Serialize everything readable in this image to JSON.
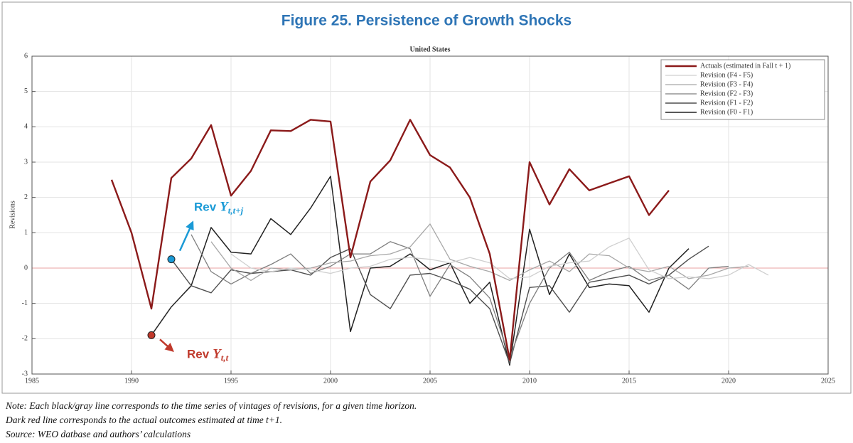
{
  "chart_data": {
    "type": "line",
    "title": "Figure 25. Persistence of Growth Shocks",
    "subtitle": "United States",
    "y_label": "Revisions",
    "x": [
      1989,
      1990,
      1991,
      1992,
      1993,
      1994,
      1995,
      1996,
      1997,
      1998,
      1999,
      2000,
      2001,
      2002,
      2003,
      2004,
      2005,
      2006,
      2007,
      2008,
      2009,
      2010,
      2011,
      2012,
      2013,
      2014,
      2015,
      2016,
      2017,
      2018,
      2019,
      2020,
      2021,
      2022
    ],
    "series": [
      {
        "name": "Actuals (estimated in Fall t + 1)",
        "color": "#8b1a1a",
        "width": 2.4,
        "values": [
          2.5,
          1.0,
          -1.15,
          2.55,
          3.1,
          4.05,
          2.05,
          2.75,
          3.9,
          3.88,
          4.2,
          4.15,
          0.3,
          2.45,
          3.05,
          4.2,
          3.2,
          2.85,
          2.0,
          0.4,
          -2.6,
          3.0,
          1.8,
          2.8,
          2.2,
          2.4,
          2.6,
          1.5,
          2.2,
          null,
          null,
          null,
          null,
          null
        ]
      },
      {
        "name": "Revision (F4 - F5)",
        "color": "#cfcfcf",
        "width": 1.3,
        "values": [
          null,
          null,
          null,
          null,
          null,
          null,
          0.4,
          0.0,
          -0.1,
          0.0,
          -0.05,
          -0.15,
          0.0,
          0.05,
          0.25,
          0.3,
          0.25,
          0.15,
          0.3,
          0.15,
          -0.3,
          -0.25,
          0.05,
          0.15,
          0.2,
          0.6,
          0.85,
          -0.05,
          -0.3,
          -0.25,
          -0.3,
          -0.2,
          0.1,
          -0.2
        ]
      },
      {
        "name": "Revision (F3 - F4)",
        "color": "#a8a8a8",
        "width": 1.3,
        "values": [
          null,
          null,
          null,
          null,
          null,
          0.75,
          0.0,
          -0.35,
          0.0,
          -0.05,
          0.0,
          0.15,
          0.2,
          0.35,
          0.4,
          0.6,
          1.25,
          0.25,
          0.05,
          -0.1,
          -0.35,
          -0.05,
          0.2,
          -0.1,
          0.4,
          0.35,
          0.0,
          -0.1,
          0.05,
          -0.3,
          -0.2,
          0.0,
          0.05,
          null
        ]
      },
      {
        "name": "Revision (F2 - F3)",
        "color": "#7f7f7f",
        "width": 1.3,
        "values": [
          null,
          null,
          null,
          null,
          0.95,
          -0.1,
          -0.45,
          -0.15,
          0.1,
          0.4,
          -0.15,
          0.05,
          0.4,
          0.4,
          0.75,
          0.55,
          -0.8,
          0.1,
          -0.25,
          -0.85,
          -2.55,
          -1.0,
          0.0,
          0.45,
          -0.35,
          -0.1,
          0.05,
          -0.35,
          -0.2,
          -0.6,
          0.0,
          0.05,
          null,
          null
        ]
      },
      {
        "name": "Revision (F1 - F2)",
        "color": "#4f4f4f",
        "width": 1.4,
        "values": [
          null,
          null,
          null,
          0.25,
          -0.5,
          -0.7,
          -0.05,
          -0.15,
          -0.1,
          -0.05,
          -0.2,
          0.3,
          0.55,
          -0.75,
          -1.15,
          -0.2,
          -0.15,
          -0.35,
          -0.6,
          -1.15,
          -2.7,
          -0.55,
          -0.5,
          -1.25,
          -0.4,
          -0.3,
          -0.2,
          -0.45,
          -0.2,
          0.25,
          0.62,
          null,
          null,
          null
        ]
      },
      {
        "name": "Revision (F0 - F1)",
        "color": "#222222",
        "width": 1.5,
        "values": [
          null,
          null,
          -1.9,
          -1.1,
          -0.5,
          1.15,
          0.45,
          0.4,
          1.4,
          0.95,
          1.7,
          2.6,
          -1.8,
          0.0,
          0.05,
          0.4,
          -0.05,
          0.15,
          -1.0,
          -0.4,
          -2.75,
          1.1,
          -0.75,
          0.4,
          -0.55,
          -0.45,
          -0.5,
          -1.25,
          0.0,
          0.55,
          null,
          null,
          null,
          null
        ]
      }
    ],
    "xlim": [
      1985,
      2025
    ],
    "xticks": [
      1985,
      1990,
      1995,
      2000,
      2005,
      2010,
      2015,
      2020,
      2025
    ],
    "ylim": [
      -3,
      6
    ],
    "yticks": [
      -3,
      -2,
      -1,
      0,
      1,
      2,
      3,
      4,
      5,
      6
    ],
    "grid": true,
    "zero_line_color": "#e8a0a0",
    "legend": "upper right",
    "annotations": [
      {
        "text": "Rev",
        "symbol": "Y",
        "subscript": "t,t+j",
        "color": "#1a9ad6",
        "point": [
          1992,
          0.25
        ]
      },
      {
        "text": "Rev",
        "symbol": "Y",
        "subscript": "t,t",
        "color": "#c0392b",
        "point": [
          1991,
          -1.9
        ]
      }
    ]
  },
  "notes": [
    "Note: Each black/gray line corresponds to the time series of vintages of revisions, for a given time horizon.",
    "Dark red line corresponds to the actual outcomes estimated at time t+1.",
    "Source: WEO datbase and authors’ calculations"
  ]
}
